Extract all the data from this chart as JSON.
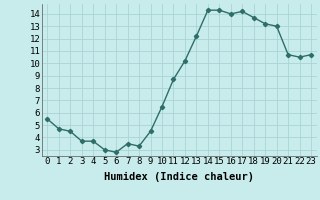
{
  "x": [
    0,
    1,
    2,
    3,
    4,
    5,
    6,
    7,
    8,
    9,
    10,
    11,
    12,
    13,
    14,
    15,
    16,
    17,
    18,
    19,
    20,
    21,
    22,
    23
  ],
  "y": [
    5.5,
    4.7,
    4.5,
    3.7,
    3.7,
    3.0,
    2.8,
    3.5,
    3.3,
    4.5,
    6.5,
    8.7,
    10.2,
    12.2,
    14.3,
    14.3,
    14.0,
    14.2,
    13.7,
    13.2,
    13.0,
    10.7,
    10.5,
    10.7
  ],
  "xlabel": "Humidex (Indice chaleur)",
  "line_color": "#2e6e6a",
  "marker": "D",
  "marker_size": 2.2,
  "bg_color": "#c8ecec",
  "grid_color": "#aad4d4",
  "ylim": [
    2.5,
    14.8
  ],
  "xlim": [
    -0.5,
    23.5
  ],
  "yticks": [
    3,
    4,
    5,
    6,
    7,
    8,
    9,
    10,
    11,
    12,
    13,
    14
  ],
  "xticks": [
    0,
    1,
    2,
    3,
    4,
    5,
    6,
    7,
    8,
    9,
    10,
    11,
    12,
    13,
    14,
    15,
    16,
    17,
    18,
    19,
    20,
    21,
    22,
    23
  ],
  "tick_label_size": 6.5,
  "xlabel_size": 7.5,
  "line_width": 1.0
}
